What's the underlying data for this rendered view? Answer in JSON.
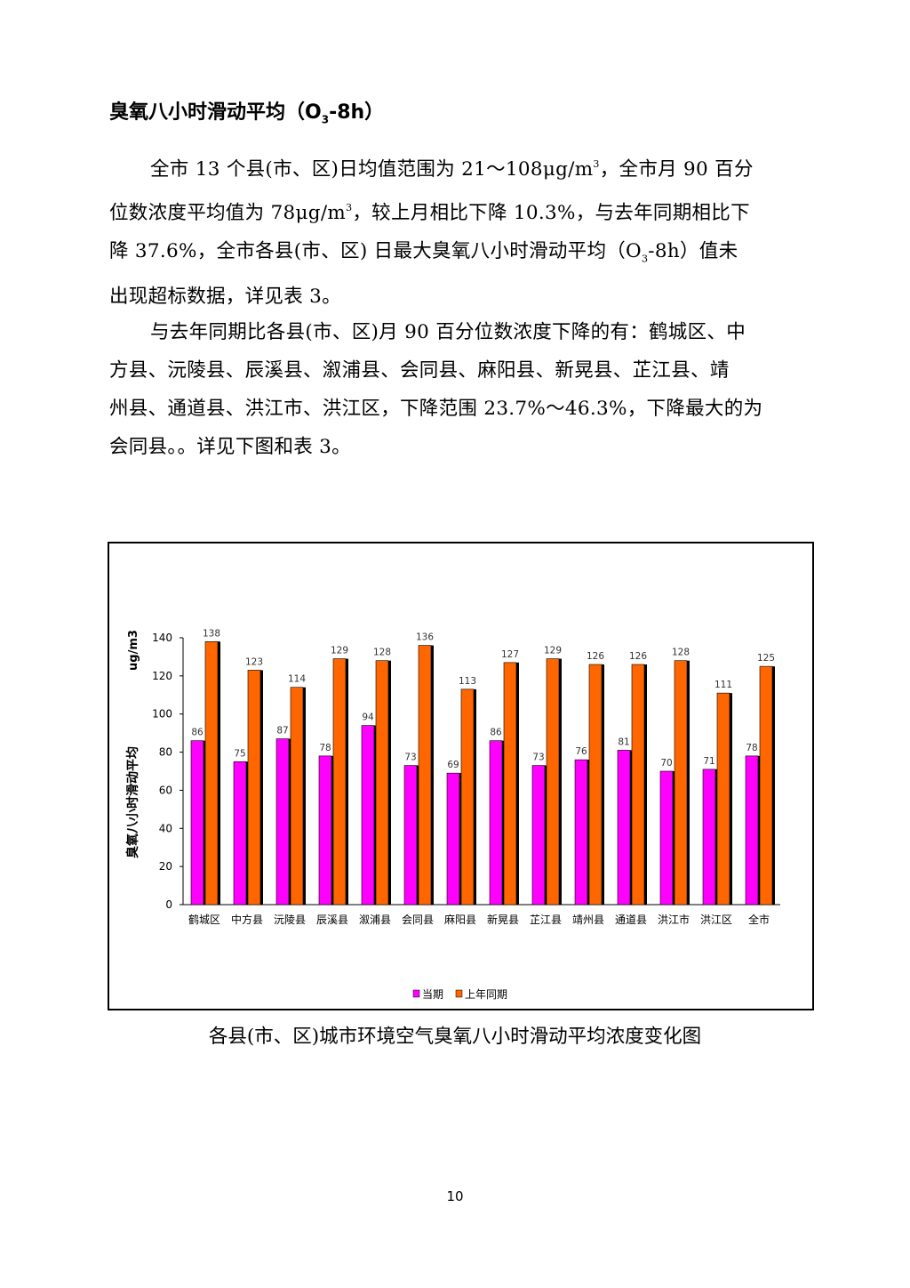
{
  "heading": {
    "text_before": "臭氧八小时滑动平均（O",
    "sub": "3",
    "text_after": "-8h）"
  },
  "paragraph1": {
    "l1_a": "全市 13 个县(市、区)日均值范围为 21～108μg/m",
    "l1_sup": "3",
    "l1_b": "，全市月 90 百分",
    "l2_a": "位数浓度平均值为 78μg/m",
    "l2_sup": "3",
    "l2_b": "，较上月相比下降 10.3%，与去年同期相比下",
    "l3_a": "降 37.6%，全市各县(市、区) 日最大臭氧八小时滑动平均（O",
    "l3_sub": "3",
    "l3_b": "-8h）值未",
    "l4": "出现超标数据，详见表 3。"
  },
  "paragraph2": {
    "l1": "与去年同期比各县(市、区)月 90 百分位数浓度下降的有：鹤城区、中",
    "l2": "方县、沅陵县、辰溪县、溆浦县、会同县、麻阳县、新晃县、芷江县、靖",
    "l3": "州县、通道县、洪江市、洪江区，下降范围 23.7%～46.3%，下降最大的为",
    "l4": "会同县。。详见下图和表 3。"
  },
  "chart_data": {
    "type": "bar",
    "title": "",
    "ylabel": "臭氧八小时滑动平均",
    "unit": "ug/m3",
    "ylim": [
      0,
      140
    ],
    "yticks": [
      0,
      20,
      40,
      60,
      80,
      100,
      120,
      140
    ],
    "categories": [
      "鹤城区",
      "中方县",
      "沅陵县",
      "辰溪县",
      "溆浦县",
      "会同县",
      "麻阳县",
      "新晃县",
      "芷江县",
      "靖州县",
      "通道县",
      "洪江市",
      "洪江区",
      "全市"
    ],
    "series": [
      {
        "name": "当期",
        "color": "#ff00ff",
        "values": [
          86,
          75,
          87,
          78,
          94,
          73,
          69,
          86,
          73,
          76,
          81,
          70,
          71,
          78
        ]
      },
      {
        "name": "上年同期",
        "color": "#ff6600",
        "values": [
          138,
          123,
          114,
          129,
          128,
          136,
          113,
          127,
          129,
          126,
          126,
          128,
          111,
          125
        ]
      }
    ],
    "legend_position": "bottom",
    "grid": false
  },
  "caption": "各县(市、区)城市环境空气臭氧八小时滑动平均浓度变化图",
  "page_number": "10"
}
